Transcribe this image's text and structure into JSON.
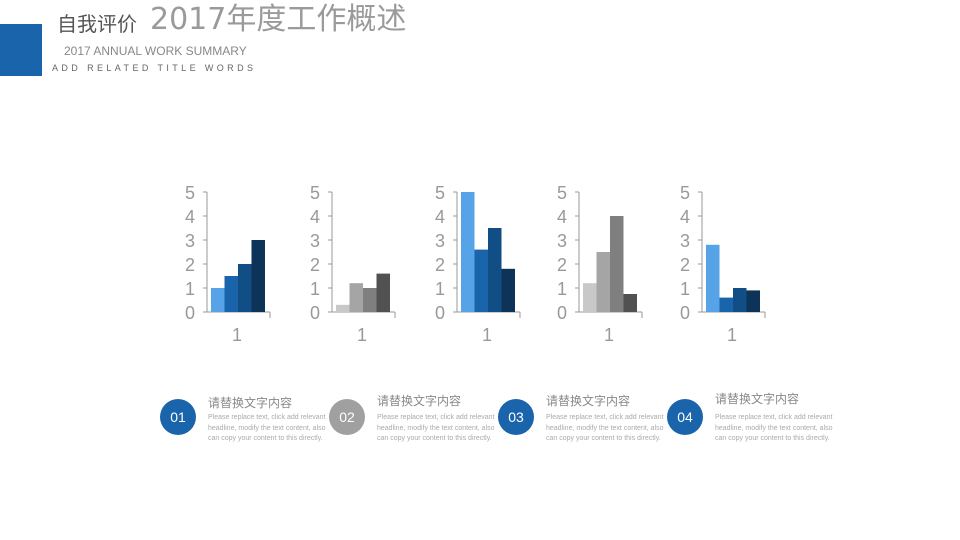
{
  "header": {
    "section_title": "自我评价",
    "main_title": "2017年度工作概述",
    "english_title": "2017 ANNUAL WORK SUMMARY",
    "subtitle": "ADD RELATED TITLE WORDS",
    "accent": "#1a64ab"
  },
  "chart_data": [
    {
      "type": "bar",
      "categories": [
        "1"
      ],
      "ylim": [
        0,
        5
      ],
      "yticks": [
        "0",
        "1",
        "2",
        "3",
        "4",
        "5"
      ],
      "series": [
        {
          "values": [
            1.0
          ]
        },
        {
          "values": [
            1.5
          ]
        },
        {
          "values": [
            2.0
          ]
        },
        {
          "values": [
            3.0
          ]
        }
      ],
      "colors": [
        "#56a3e8",
        "#1a64ab",
        "#124e86",
        "#0d3358"
      ]
    },
    {
      "type": "bar",
      "categories": [
        "1"
      ],
      "ylim": [
        0,
        5
      ],
      "yticks": [
        "0",
        "1",
        "2",
        "3",
        "4",
        "5"
      ],
      "series": [
        {
          "values": [
            0.3
          ]
        },
        {
          "values": [
            1.2
          ]
        },
        {
          "values": [
            1.0
          ]
        },
        {
          "values": [
            1.6
          ]
        }
      ],
      "colors": [
        "#c8c8c8",
        "#a5a5a5",
        "#7f7f7f",
        "#515151"
      ]
    },
    {
      "type": "bar",
      "categories": [
        "1"
      ],
      "ylim": [
        0,
        5
      ],
      "yticks": [
        "0",
        "1",
        "2",
        "3",
        "4",
        "5"
      ],
      "series": [
        {
          "values": [
            5.0
          ]
        },
        {
          "values": [
            2.6
          ]
        },
        {
          "values": [
            3.5
          ]
        },
        {
          "values": [
            1.8
          ]
        }
      ],
      "colors": [
        "#56a3e8",
        "#1a64ab",
        "#124e86",
        "#0d3358"
      ]
    },
    {
      "type": "bar",
      "categories": [
        "1"
      ],
      "ylim": [
        0,
        5
      ],
      "yticks": [
        "0",
        "1",
        "2",
        "3",
        "4",
        "5"
      ],
      "series": [
        {
          "values": [
            1.2
          ]
        },
        {
          "values": [
            2.5
          ]
        },
        {
          "values": [
            4.0
          ]
        },
        {
          "values": [
            0.75
          ]
        }
      ],
      "colors": [
        "#c8c8c8",
        "#a5a5a5",
        "#7f7f7f",
        "#515151"
      ]
    },
    {
      "type": "bar",
      "categories": [
        "1"
      ],
      "ylim": [
        0,
        5
      ],
      "yticks": [
        "0",
        "1",
        "2",
        "3",
        "4",
        "5"
      ],
      "series": [
        {
          "values": [
            2.8
          ]
        },
        {
          "values": [
            0.6
          ]
        },
        {
          "values": [
            1.0
          ]
        },
        {
          "values": [
            0.9
          ]
        }
      ],
      "colors": [
        "#56a3e8",
        "#1a64ab",
        "#124e86",
        "#0d3358"
      ]
    }
  ],
  "items": [
    {
      "number": "01",
      "heading": "请替换文字内容",
      "body": "Please replace text, click add relevant headline, modify the text content, also can copy your content to this directly.",
      "color": "#1a64ab"
    },
    {
      "number": "02",
      "heading": "请替换文字内容",
      "body": "Please replace text, click add relevant headline, modify the text content, also can copy your content to this directly.",
      "color": "#a0a0a0"
    },
    {
      "number": "03",
      "heading": "请替换文字内容",
      "body": "Please replace text, click add relevant headline, modify the text content, also can copy your content to this directly.",
      "color": "#1a64ab"
    },
    {
      "number": "04",
      "heading": "请替换文字内容",
      "body": "Please replace text, click add relevant headline, modify the text content, also can copy your content to this directly.",
      "color": "#1a64ab"
    }
  ]
}
